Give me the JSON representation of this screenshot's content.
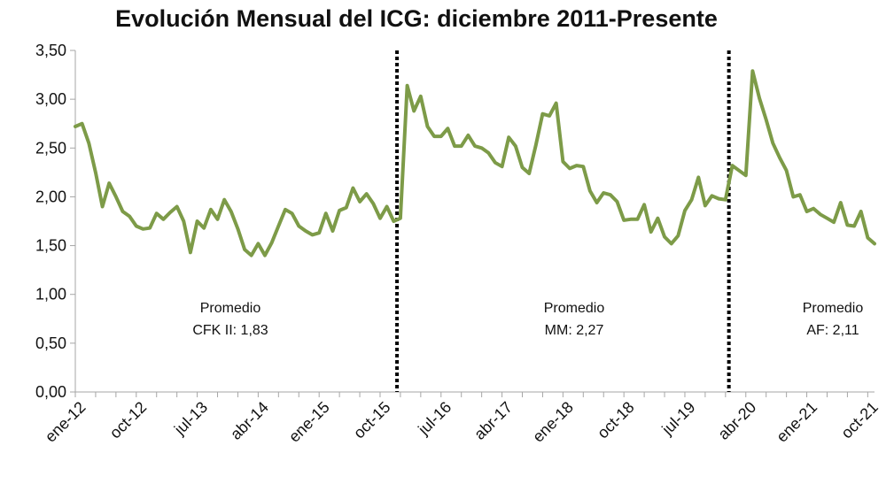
{
  "chart_data": {
    "type": "line",
    "title": "Evolución Mensual del ICG: diciembre 2011-Presente",
    "xlabel": "",
    "ylabel": "",
    "ylim": [
      0,
      3.5
    ],
    "y_ticks": [
      "0,00",
      "0,50",
      "1,00",
      "1,50",
      "2,00",
      "2,50",
      "3,00",
      "3,50"
    ],
    "x_ticks": [
      "ene-12",
      "oct-12",
      "jul-13",
      "abr-14",
      "ene-15",
      "oct-15",
      "jul-16",
      "abr-17",
      "ene-18",
      "oct-18",
      "jul-19",
      "abr-20",
      "ene-21",
      "oct-21"
    ],
    "grid": false,
    "series": [
      {
        "name": "ICG",
        "color": "#7d9b48",
        "values": [
          2.72,
          2.75,
          2.55,
          2.25,
          1.9,
          2.14,
          2.0,
          1.85,
          1.8,
          1.7,
          1.67,
          1.68,
          1.83,
          1.77,
          1.84,
          1.9,
          1.75,
          1.43,
          1.75,
          1.68,
          1.87,
          1.77,
          1.97,
          1.85,
          1.67,
          1.46,
          1.4,
          1.52,
          1.4,
          1.53,
          1.7,
          1.87,
          1.83,
          1.7,
          1.65,
          1.61,
          1.63,
          1.83,
          1.65,
          1.86,
          1.89,
          2.09,
          1.95,
          2.03,
          1.93,
          1.78,
          1.9,
          1.75,
          1.78,
          3.14,
          2.88,
          3.03,
          2.72,
          2.62,
          2.62,
          2.7,
          2.52,
          2.52,
          2.63,
          2.52,
          2.5,
          2.45,
          2.35,
          2.31,
          2.61,
          2.52,
          2.3,
          2.24,
          2.53,
          2.85,
          2.83,
          2.96,
          2.36,
          2.29,
          2.32,
          2.31,
          2.06,
          1.94,
          2.04,
          2.02,
          1.95,
          1.76,
          1.77,
          1.77,
          1.92,
          1.64,
          1.78,
          1.59,
          1.52,
          1.6,
          1.86,
          1.97,
          2.2,
          1.91,
          2.01,
          1.98,
          1.97,
          2.32,
          2.27,
          2.22,
          3.29,
          3.01,
          2.79,
          2.55,
          2.4,
          2.27,
          2.0,
          2.02,
          1.85,
          1.88,
          1.82,
          1.78,
          1.74,
          1.94,
          1.71,
          1.7,
          1.85,
          1.58,
          1.52
        ]
      }
    ],
    "annotations": [
      {
        "line1": "Promedio",
        "line2": "CFK II: 1,83"
      },
      {
        "line1": "Promedio",
        "line2": "MM: 2,27"
      },
      {
        "line1": "Promedio",
        "line2": "AF: 2,11"
      }
    ],
    "period_dividers": [
      {
        "before_index": 48
      },
      {
        "before_index": 97
      }
    ]
  }
}
